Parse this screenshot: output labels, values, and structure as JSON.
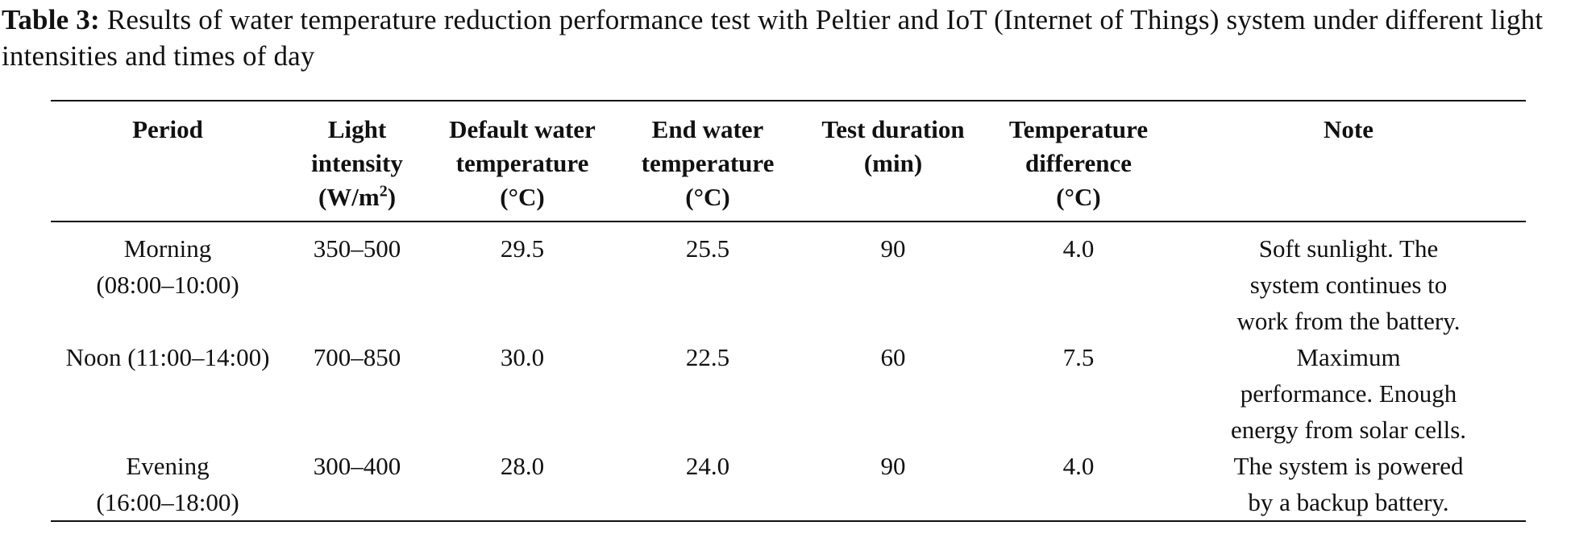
{
  "caption": {
    "label": "Table 3:",
    "text": "Results of water temperature reduction performance test with Peltier and IoT (Internet of Things) system under different light intensities and times of day"
  },
  "table": {
    "headers": {
      "period": [
        "Period"
      ],
      "light": [
        "Light",
        "intensity",
        "(W/m",
        "2",
        ")"
      ],
      "default_temp": [
        "Default water",
        "temperature",
        "(°C)"
      ],
      "end_temp": [
        "End water",
        "temperature",
        "(°C)"
      ],
      "duration": [
        "Test duration",
        "(min)"
      ],
      "difference": [
        "Temperature",
        "difference",
        "(°C)"
      ],
      "note": [
        "Note"
      ]
    },
    "rows": [
      {
        "period": [
          "Morning",
          "(08:00–10:00)"
        ],
        "light": "350–500",
        "default_temp": "29.5",
        "end_temp": "25.5",
        "duration": "90",
        "difference": "4.0",
        "note": [
          "Soft sunlight. The",
          "system continues to",
          "work from the battery."
        ]
      },
      {
        "period": [
          "Noon (11:00–14:00)"
        ],
        "light": "700–850",
        "default_temp": "30.0",
        "end_temp": "22.5",
        "duration": "60",
        "difference": "7.5",
        "note": [
          "Maximum",
          "performance. Enough",
          "energy from solar cells."
        ]
      },
      {
        "period": [
          "Evening",
          "(16:00–18:00)"
        ],
        "light": "300–400",
        "default_temp": "28.0",
        "end_temp": "24.0",
        "duration": "90",
        "difference": "4.0",
        "note": [
          "The system is powered",
          "by a backup battery."
        ]
      }
    ]
  }
}
